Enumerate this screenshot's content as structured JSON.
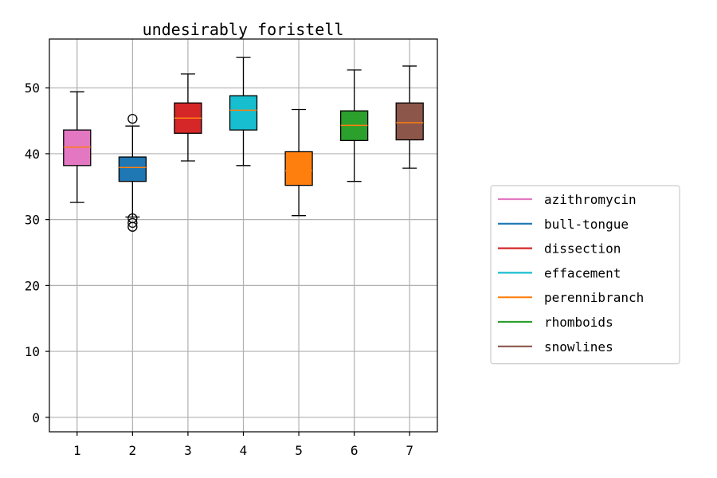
{
  "chart_data": {
    "type": "box",
    "title": "undesirably foristell",
    "xlabel": "",
    "ylabel": "",
    "categories": [
      "1",
      "2",
      "3",
      "4",
      "5",
      "6",
      "7"
    ],
    "ylim": [
      -2.2,
      57.4
    ],
    "yticks": [
      0,
      10,
      20,
      30,
      40,
      50
    ],
    "grid": true,
    "legend_position": "right",
    "series": [
      {
        "name": "azithromycin",
        "color": "#e377c2",
        "whisker_low": 32.6,
        "q1": 38.2,
        "median": 41.0,
        "q3": 43.6,
        "whisker_high": 49.4,
        "outliers": []
      },
      {
        "name": "bull-tongue",
        "color": "#1f77b4",
        "whisker_low": 30.4,
        "q1": 35.8,
        "median": 37.9,
        "q3": 39.5,
        "whisker_high": 44.2,
        "outliers": [
          45.3,
          30.2,
          29.5,
          28.9
        ]
      },
      {
        "name": "dissection",
        "color": "#d62728",
        "whisker_low": 38.9,
        "q1": 43.1,
        "median": 45.4,
        "q3": 47.7,
        "whisker_high": 52.1,
        "outliers": []
      },
      {
        "name": "effacement",
        "color": "#17becf",
        "whisker_low": 38.2,
        "q1": 43.6,
        "median": 46.6,
        "q3": 48.8,
        "whisker_high": 54.6,
        "outliers": []
      },
      {
        "name": "perennibranch",
        "color": "#ff7f0e",
        "whisker_low": 30.6,
        "q1": 35.2,
        "median": 37.4,
        "q3": 40.3,
        "whisker_high": 46.7,
        "outliers": []
      },
      {
        "name": "rhomboids",
        "color": "#2ca02c",
        "whisker_low": 35.8,
        "q1": 42.0,
        "median": 44.3,
        "q3": 46.5,
        "whisker_high": 52.7,
        "outliers": []
      },
      {
        "name": "snowlines",
        "color": "#8c564b",
        "whisker_low": 37.8,
        "q1": 42.1,
        "median": 44.7,
        "q3": 47.7,
        "whisker_high": 53.3,
        "outliers": []
      }
    ],
    "median_color": "#ff7f0e"
  }
}
